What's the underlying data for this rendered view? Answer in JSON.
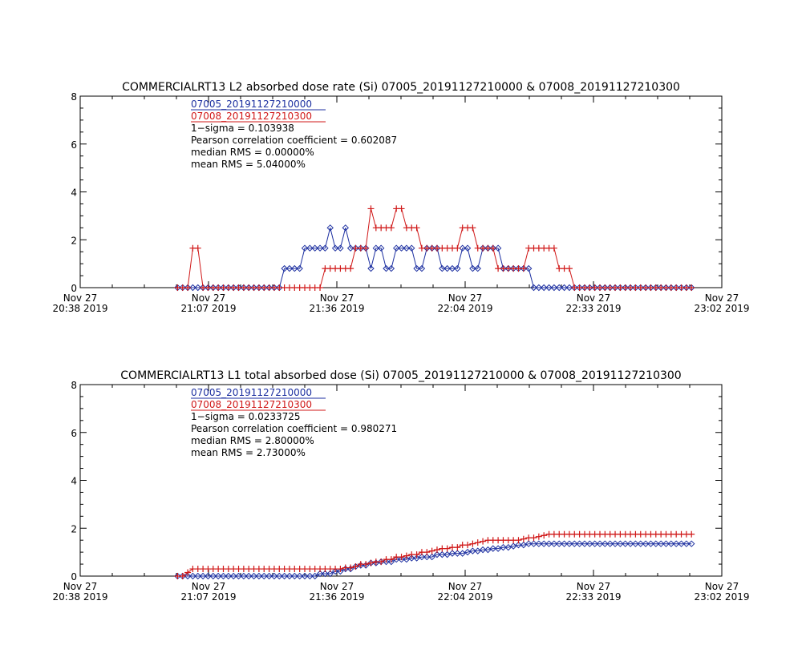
{
  "chart_data": [
    {
      "type": "line",
      "title": "COMMERCIALRT13 L2 absorbed dose rate (Si) 07005_20191127210000 & 07008_20191127210300",
      "xlabel": "",
      "ylabel": "",
      "x_ticks": [
        {
          "line1": "Nov 27",
          "line2": "20:38 2019"
        },
        {
          "line1": "Nov 27",
          "line2": "21:07 2019"
        },
        {
          "line1": "Nov 27",
          "line2": "21:36 2019"
        },
        {
          "line1": "Nov 27",
          "line2": "22:04 2019"
        },
        {
          "line1": "Nov 27",
          "line2": "22:33 2019"
        },
        {
          "line1": "Nov 27",
          "line2": "23:02 2019"
        }
      ],
      "y_ticks": [
        "0",
        "2",
        "4",
        "6",
        "8"
      ],
      "ylim": [
        0,
        8
      ],
      "annotations": [
        "1−sigma = 0.103938",
        "Pearson correlation coefficient = 0.602087",
        "median RMS = 0.00000%",
        "mean RMS = 5.04000%"
      ],
      "series": [
        {
          "name": "07005_20191127210000",
          "color": "#1c2fa0",
          "marker": "diamond",
          "values": [
            0,
            0,
            0,
            0,
            0,
            0,
            0,
            0,
            0,
            0,
            0,
            0,
            0,
            0,
            0,
            0,
            0,
            0,
            0,
            0,
            0,
            0.8,
            0.8,
            0.8,
            0.8,
            1.65,
            1.65,
            1.65,
            1.65,
            1.65,
            2.5,
            1.65,
            1.65,
            2.5,
            1.65,
            1.65,
            1.65,
            1.65,
            0.8,
            1.65,
            1.65,
            0.8,
            0.8,
            1.65,
            1.65,
            1.65,
            1.65,
            0.8,
            0.8,
            1.65,
            1.65,
            1.65,
            0.8,
            0.8,
            0.8,
            0.8,
            1.65,
            1.65,
            0.8,
            0.8,
            1.65,
            1.65,
            1.65,
            1.65,
            0.8,
            0.8,
            0.8,
            0.8,
            0.8,
            0.8,
            0,
            0,
            0,
            0,
            0,
            0,
            0,
            0,
            0,
            0,
            0,
            0,
            0,
            0,
            0,
            0,
            0,
            0,
            0,
            0,
            0,
            0,
            0,
            0,
            0,
            0,
            0,
            0,
            0,
            0,
            0,
            0
          ]
        },
        {
          "name": "07008_20191127210300",
          "color": "#d01818",
          "marker": "plus",
          "values": [
            0,
            0,
            0,
            1.65,
            1.65,
            0,
            0,
            0,
            0,
            0,
            0,
            0,
            0,
            0,
            0,
            0,
            0,
            0,
            0,
            0,
            0,
            0,
            0,
            0,
            0,
            0,
            0,
            0,
            0,
            0.8,
            0.8,
            0.8,
            0.8,
            0.8,
            0.8,
            1.65,
            1.65,
            1.65,
            3.3,
            2.5,
            2.5,
            2.5,
            2.5,
            3.3,
            3.3,
            2.5,
            2.5,
            2.5,
            1.65,
            1.65,
            1.65,
            1.65,
            1.65,
            1.65,
            1.65,
            1.65,
            2.5,
            2.5,
            2.5,
            1.65,
            1.65,
            1.65,
            1.65,
            0.8,
            0.8,
            0.8,
            0.8,
            0.8,
            0.8,
            1.65,
            1.65,
            1.65,
            1.65,
            1.65,
            1.65,
            0.8,
            0.8,
            0.8,
            0,
            0,
            0,
            0,
            0,
            0,
            0,
            0,
            0,
            0,
            0,
            0,
            0,
            0,
            0,
            0,
            0,
            0,
            0,
            0,
            0,
            0,
            0,
            0
          ]
        }
      ]
    },
    {
      "type": "line",
      "title": "COMMERCIALRT13 L1 total absorbed dose (Si) 07005_20191127210000 & 07008_20191127210300",
      "xlabel": "",
      "ylabel": "",
      "x_ticks": [
        {
          "line1": "Nov 27",
          "line2": "20:38 2019"
        },
        {
          "line1": "Nov 27",
          "line2": "21:07 2019"
        },
        {
          "line1": "Nov 27",
          "line2": "21:36 2019"
        },
        {
          "line1": "Nov 27",
          "line2": "22:04 2019"
        },
        {
          "line1": "Nov 27",
          "line2": "22:33 2019"
        },
        {
          "line1": "Nov 27",
          "line2": "23:02 2019"
        }
      ],
      "y_ticks": [
        "0",
        "2",
        "4",
        "6",
        "8"
      ],
      "ylim": [
        0,
        8
      ],
      "annotations": [
        "1−sigma = 0.0233725",
        "Pearson correlation coefficient = 0.980271",
        "median RMS = 2.80000%",
        "mean RMS = 2.73000%"
      ],
      "series": [
        {
          "name": "07005_20191127210000",
          "color": "#1c2fa0",
          "marker": "diamond",
          "values": [
            0,
            0,
            0,
            0,
            0,
            0,
            0,
            0,
            0,
            0,
            0,
            0,
            0,
            0,
            0,
            0,
            0,
            0,
            0,
            0,
            0,
            0,
            0,
            0,
            0,
            0,
            0,
            0,
            0.1,
            0.1,
            0.1,
            0.2,
            0.2,
            0.3,
            0.3,
            0.4,
            0.45,
            0.45,
            0.55,
            0.55,
            0.6,
            0.6,
            0.6,
            0.7,
            0.7,
            0.7,
            0.75,
            0.75,
            0.8,
            0.8,
            0.8,
            0.9,
            0.9,
            0.9,
            0.95,
            0.95,
            0.95,
            1.0,
            1.05,
            1.05,
            1.1,
            1.1,
            1.15,
            1.15,
            1.2,
            1.2,
            1.25,
            1.3,
            1.3,
            1.35,
            1.35,
            1.35,
            1.35,
            1.35,
            1.35,
            1.35,
            1.35,
            1.35,
            1.35,
            1.35,
            1.35,
            1.35,
            1.35,
            1.35,
            1.35,
            1.35,
            1.35,
            1.35,
            1.35,
            1.35,
            1.35,
            1.35,
            1.35,
            1.35,
            1.35,
            1.35,
            1.35,
            1.35,
            1.35,
            1.35,
            1.35,
            1.35
          ]
        },
        {
          "name": "07008_20191127210300",
          "color": "#d01818",
          "marker": "plus",
          "values": [
            0,
            0,
            0.15,
            0.3,
            0.3,
            0.3,
            0.3,
            0.3,
            0.3,
            0.3,
            0.3,
            0.3,
            0.3,
            0.3,
            0.3,
            0.3,
            0.3,
            0.3,
            0.3,
            0.3,
            0.3,
            0.3,
            0.3,
            0.3,
            0.3,
            0.3,
            0.3,
            0.3,
            0.3,
            0.3,
            0.3,
            0.3,
            0.3,
            0.35,
            0.35,
            0.4,
            0.5,
            0.5,
            0.55,
            0.6,
            0.6,
            0.7,
            0.7,
            0.8,
            0.8,
            0.85,
            0.9,
            0.9,
            1.0,
            1.0,
            1.05,
            1.1,
            1.15,
            1.15,
            1.2,
            1.2,
            1.3,
            1.3,
            1.35,
            1.4,
            1.45,
            1.5,
            1.5,
            1.5,
            1.5,
            1.5,
            1.5,
            1.5,
            1.55,
            1.6,
            1.6,
            1.65,
            1.7,
            1.75,
            1.75,
            1.75,
            1.75,
            1.75,
            1.75,
            1.75,
            1.75,
            1.75,
            1.75,
            1.75,
            1.75,
            1.75,
            1.75,
            1.75,
            1.75,
            1.75,
            1.75,
            1.75,
            1.75,
            1.75,
            1.75,
            1.75,
            1.75,
            1.75,
            1.75,
            1.75,
            1.75,
            1.75
          ]
        }
      ]
    }
  ]
}
